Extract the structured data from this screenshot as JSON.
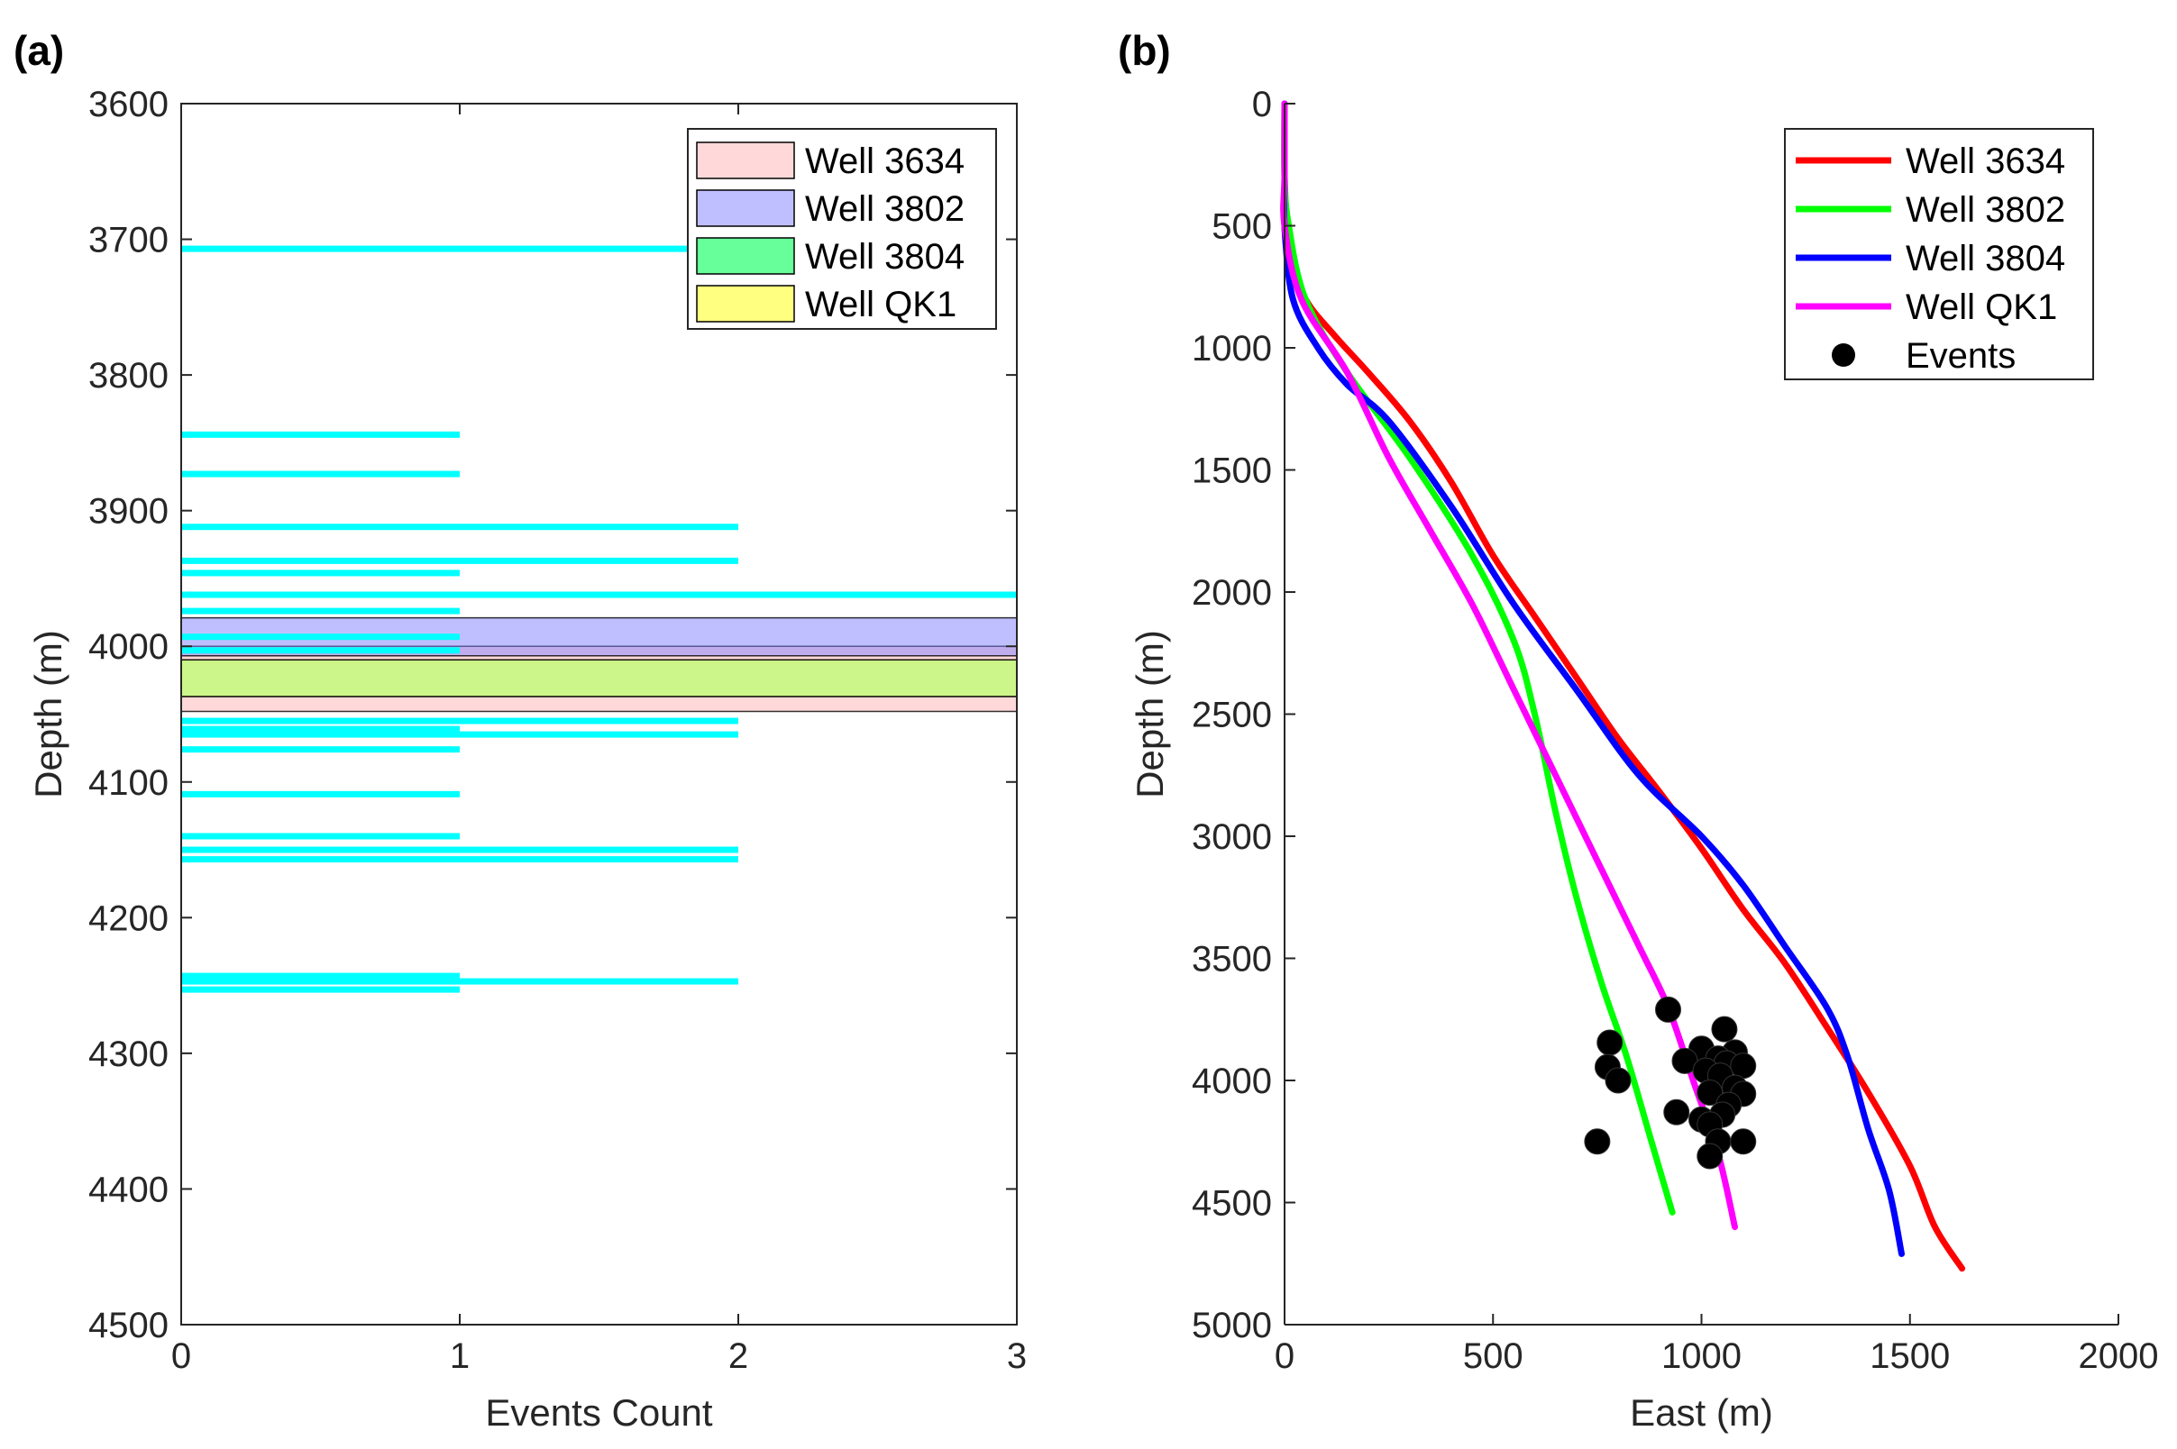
{
  "chart_data": [
    {
      "panel": "(a)",
      "type": "bar",
      "orientation": "horizontal",
      "xlabel": "Events Count",
      "ylabel": "Depth (m)",
      "xlim": [
        0,
        3
      ],
      "ylim": [
        3600,
        4500
      ],
      "y_reversed": true,
      "xticks": [
        0,
        1,
        2,
        3
      ],
      "yticks": [
        3600,
        3700,
        3800,
        3900,
        4000,
        4100,
        4200,
        4300,
        4400,
        4500
      ],
      "bar_color": "#00FFFF",
      "events": [
        {
          "depth": 3707,
          "count": 2
        },
        {
          "depth": 3844,
          "count": 1
        },
        {
          "depth": 3873,
          "count": 1
        },
        {
          "depth": 3912,
          "count": 2
        },
        {
          "depth": 3937,
          "count": 2
        },
        {
          "depth": 3946,
          "count": 1
        },
        {
          "depth": 3962,
          "count": 3
        },
        {
          "depth": 3974,
          "count": 1
        },
        {
          "depth": 3993,
          "count": 1
        },
        {
          "depth": 4003,
          "count": 1
        },
        {
          "depth": 4055,
          "count": 2
        },
        {
          "depth": 4061,
          "count": 1
        },
        {
          "depth": 4065,
          "count": 2
        },
        {
          "depth": 4076,
          "count": 1
        },
        {
          "depth": 4109,
          "count": 1
        },
        {
          "depth": 4140,
          "count": 1
        },
        {
          "depth": 4150,
          "count": 2
        },
        {
          "depth": 4157,
          "count": 2
        },
        {
          "depth": 4243,
          "count": 1
        },
        {
          "depth": 4247,
          "count": 2
        },
        {
          "depth": 4253,
          "count": 1
        }
      ],
      "zones": [
        {
          "name": "Well 3634",
          "top": 4000,
          "bottom": 4048,
          "color": "#FFB3B3"
        },
        {
          "name": "Well 3802",
          "top": 3979,
          "bottom": 4007,
          "color": "#8080FF"
        },
        {
          "name": "Well 3804",
          "top": 4010,
          "bottom": 4037,
          "color": "#33FF80"
        },
        {
          "name": "Well QK1",
          "top": 4010,
          "bottom": 4037,
          "color": "#FFFF66"
        }
      ],
      "legend": {
        "location": "top-right",
        "entries": [
          {
            "label": "Well 3634",
            "color": "#FFD9D9"
          },
          {
            "label": "Well 3802",
            "color": "#BFBFFF"
          },
          {
            "label": "Well 3804",
            "color": "#66FF99"
          },
          {
            "label": "Well QK1",
            "color": "#FFFF80"
          }
        ]
      }
    },
    {
      "panel": "(b)",
      "type": "line",
      "xlabel": "East (m)",
      "ylabel": "Depth (m)",
      "xlim": [
        0,
        2000
      ],
      "ylim": [
        0,
        5000
      ],
      "y_reversed": true,
      "xticks": [
        0,
        500,
        1000,
        1500,
        2000
      ],
      "yticks": [
        0,
        500,
        1000,
        1500,
        2000,
        2500,
        3000,
        3500,
        4000,
        4500,
        5000
      ],
      "series": [
        {
          "name": "Well 3634",
          "color": "#FF0000",
          "points": [
            [
              0,
              0
            ],
            [
              0,
              300
            ],
            [
              5,
              600
            ],
            [
              50,
              800
            ],
            [
              120,
              950
            ],
            [
              200,
              1100
            ],
            [
              300,
              1300
            ],
            [
              400,
              1550
            ],
            [
              500,
              1850
            ],
            [
              600,
              2100
            ],
            [
              700,
              2350
            ],
            [
              800,
              2600
            ],
            [
              900,
              2820
            ],
            [
              1000,
              3050
            ],
            [
              1100,
              3300
            ],
            [
              1200,
              3520
            ],
            [
              1300,
              3780
            ],
            [
              1400,
              4050
            ],
            [
              1500,
              4350
            ],
            [
              1560,
              4600
            ],
            [
              1625,
              4770
            ]
          ]
        },
        {
          "name": "Well 3802",
          "color": "#00FF00",
          "points": [
            [
              0,
              0
            ],
            [
              0,
              300
            ],
            [
              10,
              500
            ],
            [
              50,
              800
            ],
            [
              150,
              1100
            ],
            [
              300,
              1450
            ],
            [
              450,
              1850
            ],
            [
              550,
              2200
            ],
            [
              600,
              2500
            ],
            [
              650,
              2900
            ],
            [
              700,
              3250
            ],
            [
              760,
              3600
            ],
            [
              820,
              3900
            ],
            [
              880,
              4250
            ],
            [
              930,
              4540
            ]
          ]
        },
        {
          "name": "Well 3804",
          "color": "#0000FF",
          "points": [
            [
              0,
              0
            ],
            [
              0,
              300
            ],
            [
              0,
              500
            ],
            [
              20,
              800
            ],
            [
              80,
              1000
            ],
            [
              150,
              1150
            ],
            [
              250,
              1300
            ],
            [
              400,
              1650
            ],
            [
              550,
              2050
            ],
            [
              700,
              2400
            ],
            [
              850,
              2750
            ],
            [
              1000,
              3000
            ],
            [
              1100,
              3200
            ],
            [
              1200,
              3450
            ],
            [
              1300,
              3700
            ],
            [
              1350,
              3900
            ],
            [
              1400,
              4200
            ],
            [
              1450,
              4450
            ],
            [
              1480,
              4710
            ]
          ]
        },
        {
          "name": "Well QK1",
          "color": "#FF00FF",
          "points": [
            [
              0,
              0
            ],
            [
              0,
              300
            ],
            [
              0,
              500
            ],
            [
              40,
              800
            ],
            [
              150,
              1100
            ],
            [
              250,
              1450
            ],
            [
              350,
              1750
            ],
            [
              450,
              2050
            ],
            [
              550,
              2400
            ],
            [
              650,
              2750
            ],
            [
              750,
              3100
            ],
            [
              850,
              3450
            ],
            [
              920,
              3700
            ],
            [
              980,
              4000
            ],
            [
              1040,
              4300
            ],
            [
              1080,
              4600
            ]
          ]
        }
      ],
      "events": {
        "name": "Events",
        "color": "#000000",
        "points": [
          [
            920,
            3710
          ],
          [
            1055,
            3790
          ],
          [
            780,
            3845
          ],
          [
            1000,
            3870
          ],
          [
            1080,
            3885
          ],
          [
            1040,
            3910
          ],
          [
            960,
            3920
          ],
          [
            1060,
            3930
          ],
          [
            1100,
            3940
          ],
          [
            775,
            3945
          ],
          [
            1010,
            3960
          ],
          [
            1045,
            3980
          ],
          [
            800,
            4000
          ],
          [
            1080,
            4030
          ],
          [
            1020,
            4050
          ],
          [
            1100,
            4055
          ],
          [
            1065,
            4100
          ],
          [
            940,
            4130
          ],
          [
            1000,
            4160
          ],
          [
            1050,
            4140
          ],
          [
            1020,
            4180
          ],
          [
            1040,
            4250
          ],
          [
            1100,
            4250
          ],
          [
            750,
            4250
          ],
          [
            1020,
            4310
          ]
        ]
      },
      "legend": {
        "location": "top-right",
        "entries": [
          {
            "label": "Well 3634",
            "color": "#FF0000"
          },
          {
            "label": "Well 3802",
            "color": "#00FF00"
          },
          {
            "label": "Well 3804",
            "color": "#0000FF"
          },
          {
            "label": "Well QK1",
            "color": "#FF00FF"
          },
          {
            "label": "Events",
            "color": "#000000"
          }
        ]
      }
    }
  ]
}
